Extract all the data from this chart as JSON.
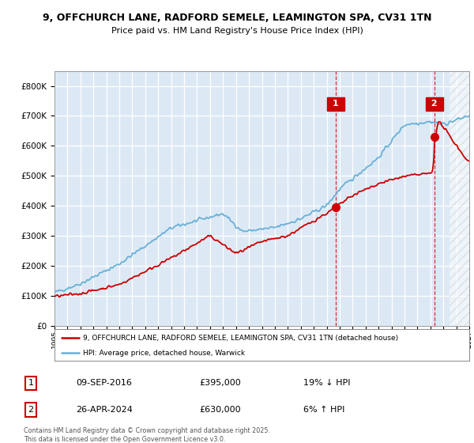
{
  "title1": "9, OFFCHURCH LANE, RADFORD SEMELE, LEAMINGTON SPA, CV31 1TN",
  "title2": "Price paid vs. HM Land Registry's House Price Index (HPI)",
  "red_label": "9, OFFCHURCH LANE, RADFORD SEMELE, LEAMINGTON SPA, CV31 1TN (detached house)",
  "blue_label": "HPI: Average price, detached house, Warwick",
  "annotation1_date": "09-SEP-2016",
  "annotation1_price": "£395,000",
  "annotation1_hpi": "19% ↓ HPI",
  "annotation2_date": "26-APR-2024",
  "annotation2_price": "£630,000",
  "annotation2_hpi": "6% ↑ HPI",
  "footer": "Contains HM Land Registry data © Crown copyright and database right 2025.\nThis data is licensed under the Open Government Licence v3.0.",
  "red_color": "#cc0000",
  "blue_color": "#6ab0d8",
  "background_color": "#dce9f5",
  "ylim": [
    0,
    850000
  ],
  "xmin": 1995.0,
  "xmax": 2027.0,
  "sale1_x": 2016.69,
  "sale1_y": 395000,
  "sale2_x": 2024.32,
  "sale2_y": 630000,
  "vline1_x": 2016.69,
  "vline2_x": 2024.32,
  "hatch_start": 2025.5
}
